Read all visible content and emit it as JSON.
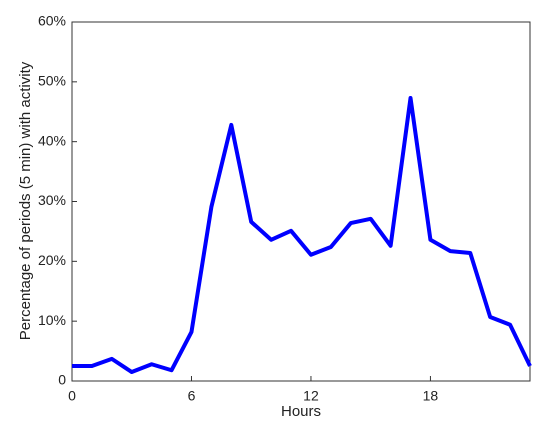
{
  "chart_data": {
    "type": "line",
    "x_label": "Hours",
    "y_label": "Percentage of periods (5 min) with activity",
    "x": [
      0,
      1,
      2,
      3,
      4,
      5,
      6,
      7,
      8,
      9,
      10,
      11,
      12,
      13,
      14,
      15,
      16,
      17,
      18,
      19,
      20,
      21,
      22,
      23
    ],
    "series": [
      {
        "color": "#0000ff",
        "values": [
          2.5,
          2.5,
          3.7,
          1.5,
          2.8,
          1.8,
          8.2,
          29.1,
          42.8,
          26.6,
          23.6,
          25.1,
          21.1,
          22.4,
          26.4,
          27.1,
          22.6,
          47.3,
          23.6,
          21.7,
          21.4,
          10.7,
          9.4,
          2.5
        ]
      }
    ],
    "xlim": [
      0,
      23
    ],
    "xticks": [
      0,
      6,
      12,
      18
    ],
    "ylim": [
      0,
      60
    ],
    "yticks": [
      0,
      {
        "value": 10,
        "label": "10%"
      },
      {
        "value": 20,
        "label": "20%"
      },
      {
        "value": 30,
        "label": "30%"
      },
      {
        "value": 40,
        "label": "40%"
      },
      {
        "value": 50,
        "label": "50%"
      },
      {
        "value": 60,
        "label": "60%"
      }
    ]
  }
}
